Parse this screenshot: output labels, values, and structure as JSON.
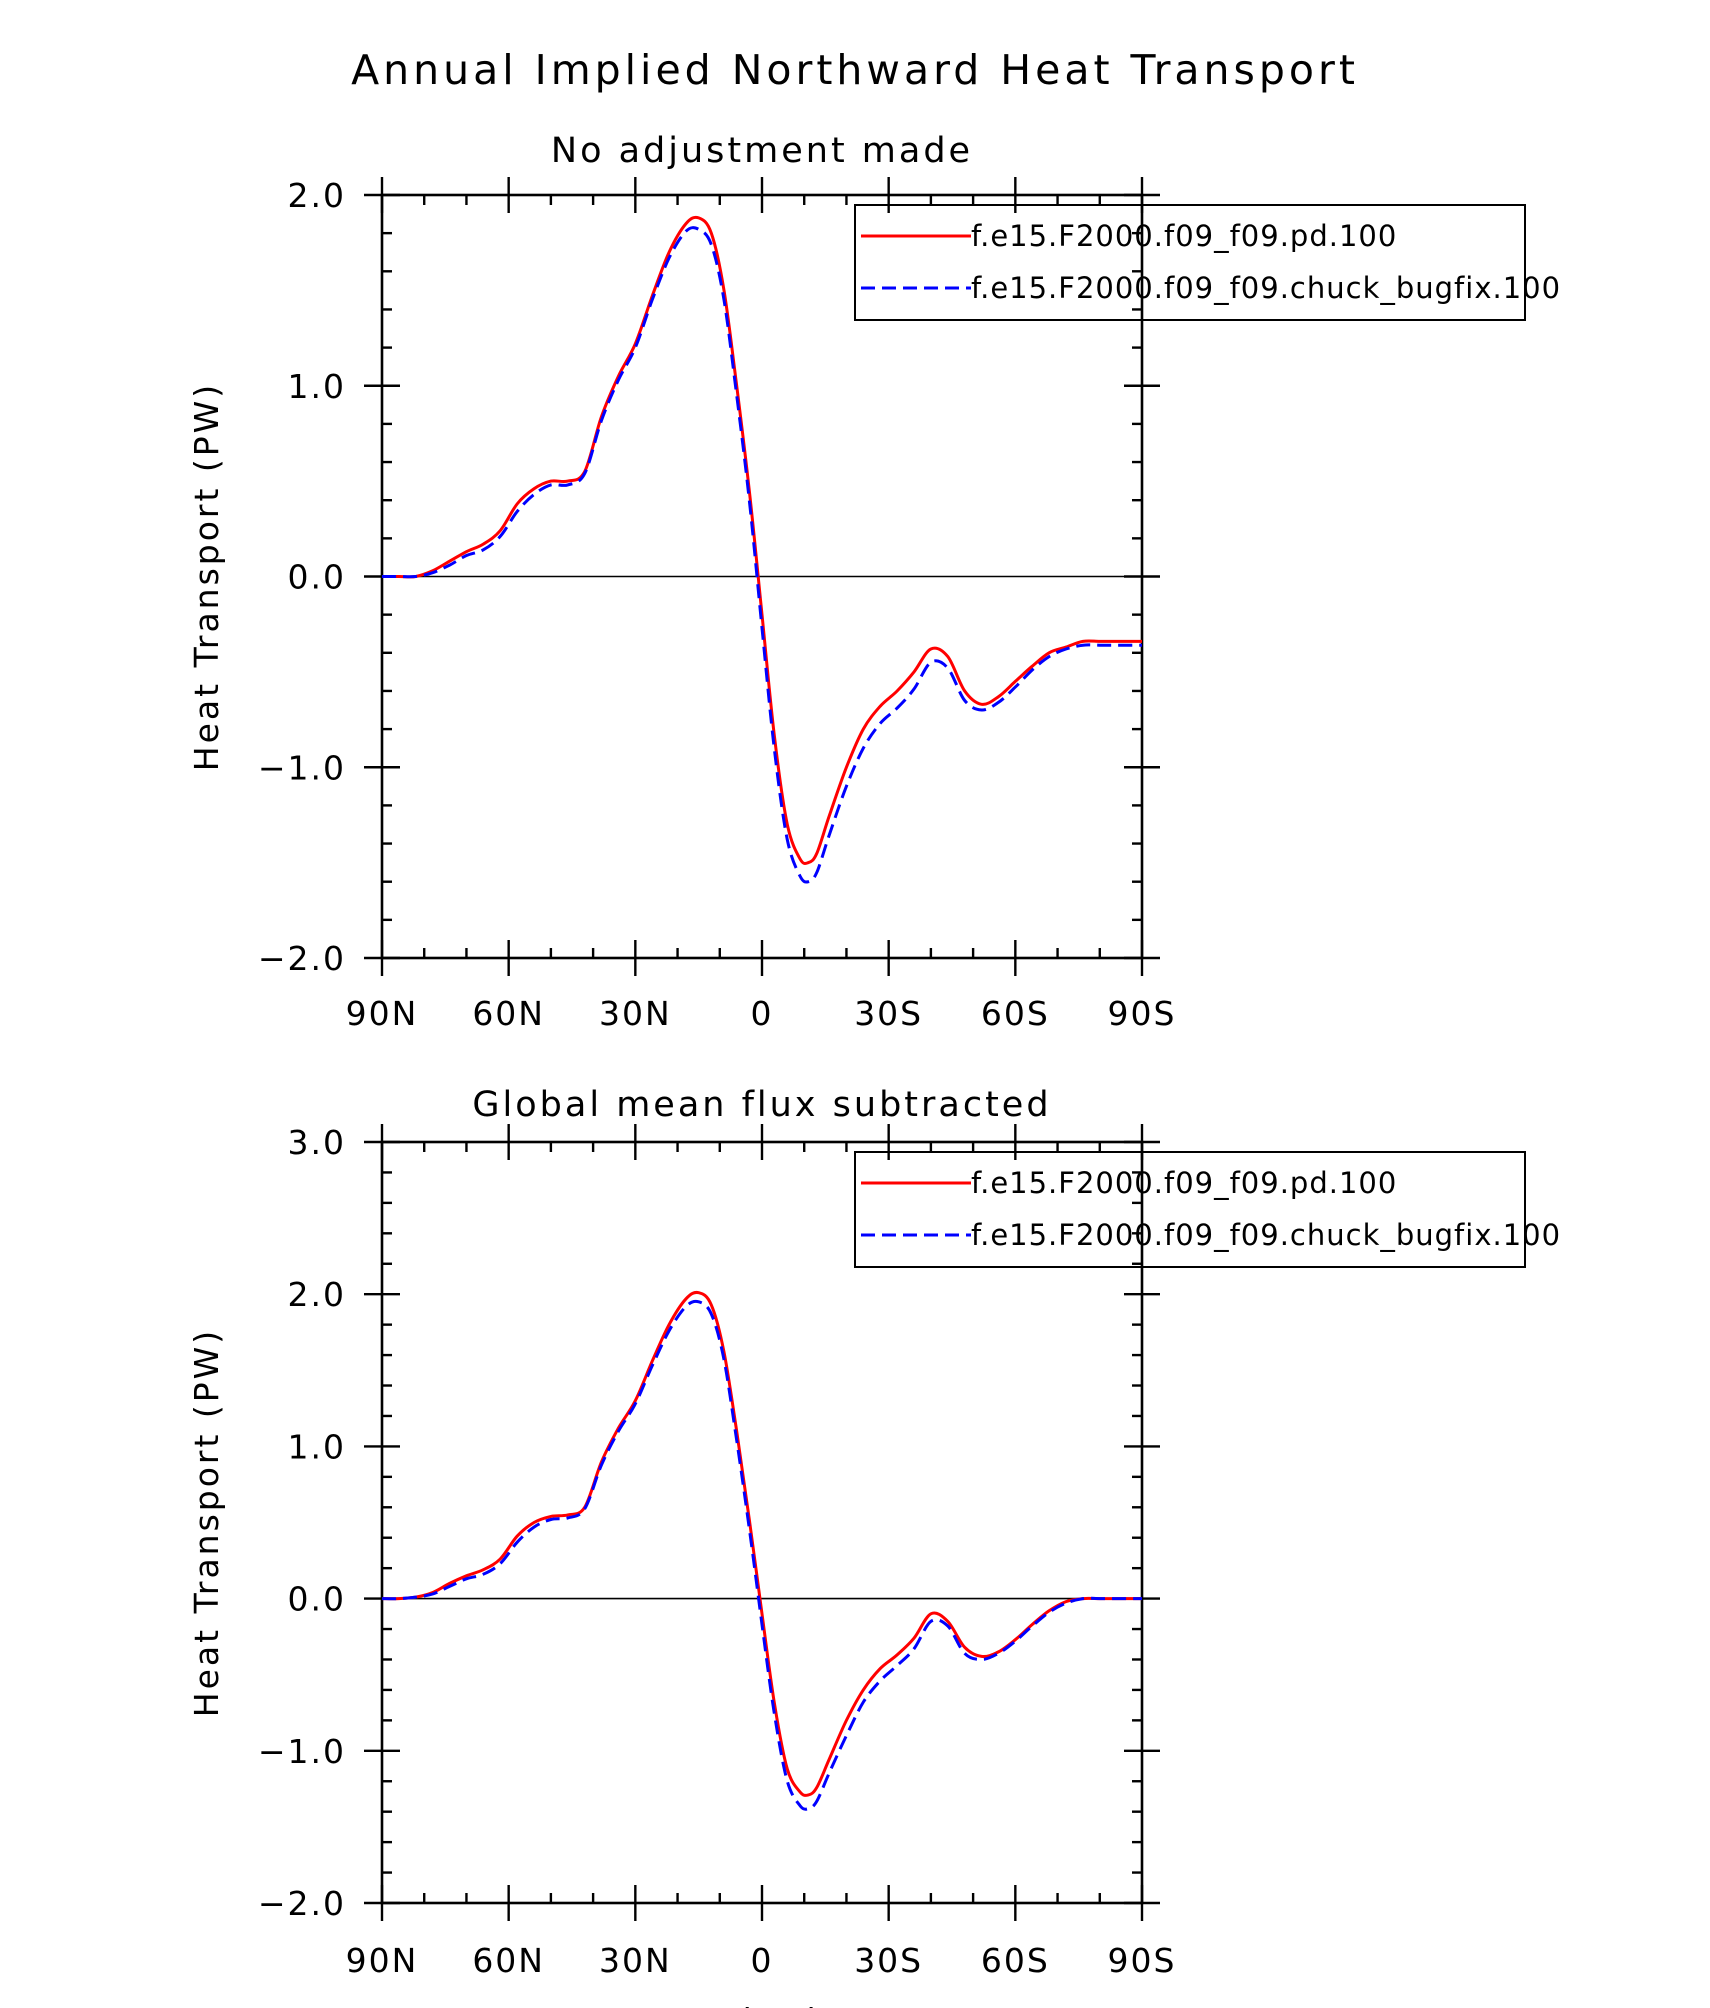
{
  "figure": {
    "title": "Annual Implied Northward Heat Transport"
  },
  "colors": {
    "series1": "#ff0000",
    "series2": "#0000ff",
    "axes": "#000000"
  },
  "chart_data": [
    {
      "type": "line",
      "title": "No adjustment made",
      "xlabel": "",
      "ylabel": "Heat Transport (PW)",
      "xlim": [
        90,
        -90
      ],
      "ylim": [
        -2.0,
        2.0
      ],
      "x_ticks": [
        {
          "value": 90,
          "label": "90N"
        },
        {
          "value": 60,
          "label": "60N"
        },
        {
          "value": 30,
          "label": "30N"
        },
        {
          "value": 0,
          "label": "0"
        },
        {
          "value": -30,
          "label": "30S"
        },
        {
          "value": -60,
          "label": "60S"
        },
        {
          "value": -90,
          "label": "90S"
        }
      ],
      "y_ticks": [
        {
          "value": 2.0,
          "label": "2.0"
        },
        {
          "value": 1.0,
          "label": "1.0"
        },
        {
          "value": 0.0,
          "label": "0.0"
        },
        {
          "value": -1.0,
          "label": "−1.0"
        },
        {
          "value": -2.0,
          "label": "−2.0"
        }
      ],
      "legend": {
        "position": "top-right"
      },
      "series": [
        {
          "name": "f.e15.F2000.f09_f09.pd.100",
          "color": "#ff0000",
          "dash": "solid",
          "x": [
            90,
            86,
            82,
            78,
            74,
            70,
            66,
            62,
            58,
            54,
            50,
            46,
            42,
            38,
            34,
            30,
            26,
            22,
            18,
            15,
            12,
            9,
            6,
            3,
            0,
            -3,
            -6,
            -9,
            -11,
            -13,
            -16,
            -20,
            -24,
            -28,
            -32,
            -36,
            -40,
            -44,
            -48,
            -52,
            -56,
            -60,
            -64,
            -68,
            -72,
            -76,
            -80,
            -84,
            -88,
            -90
          ],
          "y": [
            0.0,
            0.0,
            0.0,
            0.03,
            0.08,
            0.13,
            0.17,
            0.24,
            0.38,
            0.46,
            0.5,
            0.5,
            0.55,
            0.84,
            1.05,
            1.22,
            1.47,
            1.7,
            1.85,
            1.88,
            1.8,
            1.5,
            1.0,
            0.45,
            -0.2,
            -0.85,
            -1.3,
            -1.48,
            -1.5,
            -1.45,
            -1.25,
            -1.0,
            -0.8,
            -0.68,
            -0.6,
            -0.5,
            -0.38,
            -0.42,
            -0.6,
            -0.67,
            -0.63,
            -0.55,
            -0.47,
            -0.4,
            -0.37,
            -0.34,
            -0.34,
            -0.34,
            -0.34,
            -0.34
          ]
        },
        {
          "name": "f.e15.F2000.f09_f09.chuck_bugfix.100",
          "color": "#0000ff",
          "dash": "dashed",
          "x": [
            90,
            86,
            82,
            78,
            74,
            70,
            66,
            62,
            58,
            54,
            50,
            46,
            42,
            38,
            34,
            30,
            26,
            22,
            18,
            15,
            12,
            9,
            6,
            3,
            0,
            -3,
            -6,
            -9,
            -11,
            -13,
            -16,
            -20,
            -24,
            -28,
            -32,
            -36,
            -40,
            -44,
            -48,
            -52,
            -56,
            -60,
            -64,
            -68,
            -72,
            -76,
            -80,
            -84,
            -88,
            -90
          ],
          "y": [
            0.0,
            0.0,
            0.0,
            0.02,
            0.06,
            0.11,
            0.14,
            0.21,
            0.34,
            0.43,
            0.48,
            0.48,
            0.54,
            0.82,
            1.03,
            1.2,
            1.45,
            1.67,
            1.81,
            1.82,
            1.74,
            1.45,
            0.95,
            0.4,
            -0.27,
            -0.92,
            -1.38,
            -1.57,
            -1.6,
            -1.55,
            -1.35,
            -1.1,
            -0.9,
            -0.77,
            -0.69,
            -0.59,
            -0.45,
            -0.48,
            -0.65,
            -0.7,
            -0.66,
            -0.58,
            -0.49,
            -0.42,
            -0.38,
            -0.36,
            -0.36,
            -0.36,
            -0.36,
            -0.36
          ]
        }
      ]
    },
    {
      "type": "line",
      "title": "Global mean flux subtracted",
      "xlabel": "Latitude",
      "ylabel": "Heat Transport (PW)",
      "xlim": [
        90,
        -90
      ],
      "ylim": [
        -2.0,
        3.0
      ],
      "x_ticks": [
        {
          "value": 90,
          "label": "90N"
        },
        {
          "value": 60,
          "label": "60N"
        },
        {
          "value": 30,
          "label": "30N"
        },
        {
          "value": 0,
          "label": "0"
        },
        {
          "value": -30,
          "label": "30S"
        },
        {
          "value": -60,
          "label": "60S"
        },
        {
          "value": -90,
          "label": "90S"
        }
      ],
      "y_ticks": [
        {
          "value": 3.0,
          "label": "3.0"
        },
        {
          "value": 2.0,
          "label": "2.0"
        },
        {
          "value": 1.0,
          "label": "1.0"
        },
        {
          "value": 0.0,
          "label": "0.0"
        },
        {
          "value": -1.0,
          "label": "−1.0"
        },
        {
          "value": -2.0,
          "label": "−2.0"
        }
      ],
      "legend": {
        "position": "top-right"
      },
      "series": [
        {
          "name": "f.e15.F2000.f09_f09.pd.100",
          "color": "#ff0000",
          "dash": "solid",
          "x": [
            90,
            86,
            82,
            78,
            74,
            70,
            66,
            62,
            58,
            54,
            50,
            46,
            42,
            38,
            34,
            30,
            26,
            22,
            18,
            15,
            12,
            9,
            6,
            3,
            0,
            -3,
            -6,
            -9,
            -11,
            -13,
            -16,
            -20,
            -24,
            -28,
            -32,
            -36,
            -40,
            -44,
            -48,
            -52,
            -56,
            -60,
            -64,
            -68,
            -72,
            -76,
            -80,
            -84,
            -88,
            -90
          ],
          "y": [
            0.0,
            0.0,
            0.01,
            0.04,
            0.1,
            0.15,
            0.19,
            0.26,
            0.41,
            0.5,
            0.54,
            0.55,
            0.6,
            0.9,
            1.12,
            1.3,
            1.56,
            1.8,
            1.97,
            2.01,
            1.93,
            1.62,
            1.1,
            0.52,
            -0.1,
            -0.7,
            -1.12,
            -1.27,
            -1.29,
            -1.24,
            -1.05,
            -0.8,
            -0.6,
            -0.46,
            -0.37,
            -0.26,
            -0.1,
            -0.15,
            -0.32,
            -0.38,
            -0.35,
            -0.27,
            -0.17,
            -0.08,
            -0.02,
            0.0,
            0.0,
            0.0,
            0.0,
            0.0
          ]
        },
        {
          "name": "f.e15.F2000.f09_f09.chuck_bugfix.100",
          "color": "#0000ff",
          "dash": "dashed",
          "x": [
            90,
            86,
            82,
            78,
            74,
            70,
            66,
            62,
            58,
            54,
            50,
            46,
            42,
            38,
            34,
            30,
            26,
            22,
            18,
            15,
            12,
            9,
            6,
            3,
            0,
            -3,
            -6,
            -9,
            -11,
            -13,
            -16,
            -20,
            -24,
            -28,
            -32,
            -36,
            -40,
            -44,
            -48,
            -52,
            -56,
            -60,
            -64,
            -68,
            -72,
            -76,
            -80,
            -84,
            -88,
            -90
          ],
          "y": [
            0.0,
            0.0,
            0.01,
            0.03,
            0.08,
            0.13,
            0.16,
            0.23,
            0.37,
            0.47,
            0.52,
            0.53,
            0.59,
            0.88,
            1.1,
            1.28,
            1.53,
            1.76,
            1.92,
            1.95,
            1.87,
            1.57,
            1.04,
            0.46,
            -0.17,
            -0.77,
            -1.2,
            -1.36,
            -1.38,
            -1.33,
            -1.14,
            -0.9,
            -0.68,
            -0.54,
            -0.44,
            -0.33,
            -0.15,
            -0.18,
            -0.36,
            -0.4,
            -0.36,
            -0.28,
            -0.18,
            -0.09,
            -0.03,
            0.0,
            0.0,
            0.0,
            0.0,
            0.0
          ]
        }
      ]
    }
  ]
}
